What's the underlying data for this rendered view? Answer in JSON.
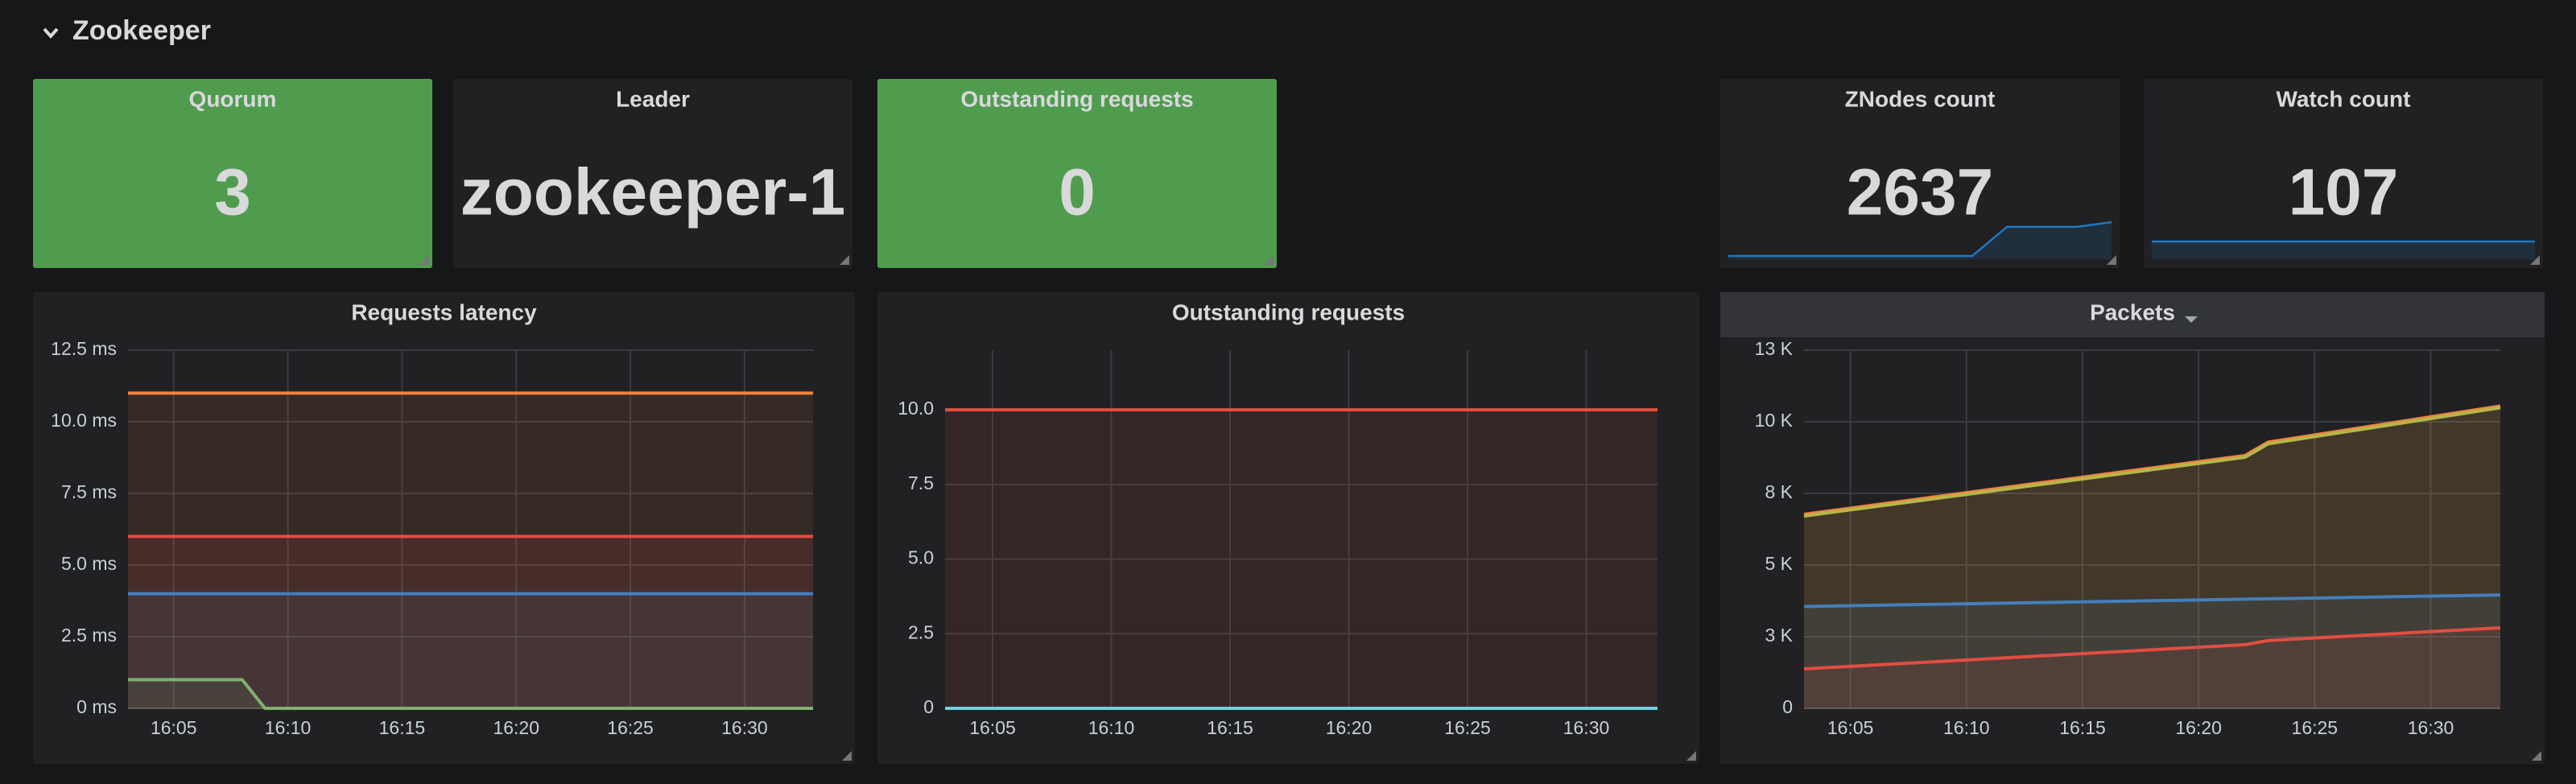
{
  "header": {
    "title": "Zookeeper"
  },
  "stats": [
    {
      "title": "Quorum",
      "value": 3,
      "color": "#4f9c4f"
    },
    {
      "title": "Leader",
      "value": "zookeeper-1",
      "color": "#212124"
    },
    {
      "title": "Outstanding requests",
      "value": 0,
      "color": "#4f9c4f"
    },
    {
      "title": "ZNodes count",
      "value": 2637,
      "color": "#212124",
      "sparkline": [
        2601,
        2601,
        2601,
        2601,
        2601,
        2601,
        2601,
        2601,
        2632,
        2632,
        2632,
        2637
      ],
      "sparkline_color": "#1f78c1"
    },
    {
      "title": "Watch count",
      "value": 107,
      "color": "#212124",
      "sparkline": [
        107,
        107,
        107,
        107,
        107,
        107,
        107,
        107,
        107,
        107,
        107,
        107
      ],
      "sparkline_color": "#1f78c1"
    }
  ],
  "chart_data": [
    {
      "type": "line",
      "title": "Requests latency",
      "fill": true,
      "grid": true,
      "categories": [
        null,
        null,
        "16:05",
        null,
        null,
        null,
        null,
        "16:10",
        null,
        null,
        null,
        null,
        "16:15",
        null,
        null,
        null,
        null,
        "16:20",
        null,
        null,
        null,
        null,
        "16:25",
        null,
        null,
        null,
        null,
        "16:30",
        null,
        null,
        null
      ],
      "ylim": [
        0,
        12.5
      ],
      "yticks": [
        {
          "value": 0,
          "label": "0 ms"
        },
        {
          "value": 2.5,
          "label": "2.5 ms"
        },
        {
          "value": 5,
          "label": "5.0 ms"
        },
        {
          "value": 7.5,
          "label": "7.5 ms"
        },
        {
          "value": 10,
          "label": "10.0 ms"
        },
        {
          "value": 12.5,
          "label": "12.5 ms"
        }
      ],
      "series": [
        {
          "color": "#ef843c",
          "values": [
            11,
            11,
            11,
            11,
            11,
            11,
            11,
            11,
            11,
            11,
            11,
            11,
            11,
            11,
            11,
            11,
            11,
            11,
            11,
            11,
            11,
            11,
            11,
            11,
            11,
            11,
            11,
            11,
            11,
            11,
            11
          ]
        },
        {
          "color": "#e24d42",
          "values": [
            6,
            6,
            6,
            6,
            6,
            6,
            6,
            6,
            6,
            6,
            6,
            6,
            6,
            6,
            6,
            6,
            6,
            6,
            6,
            6,
            6,
            6,
            6,
            6,
            6,
            6,
            6,
            6,
            6,
            6,
            6
          ]
        },
        {
          "color": "#447ebc",
          "values": [
            4,
            4,
            4,
            4,
            4,
            4,
            4,
            4,
            4,
            4,
            4,
            4,
            4,
            4,
            4,
            4,
            4,
            4,
            4,
            4,
            4,
            4,
            4,
            4,
            4,
            4,
            4,
            4,
            4,
            4,
            4
          ]
        },
        {
          "color": "#7eb26d",
          "values": [
            1,
            1,
            1,
            1,
            1,
            1,
            0,
            0,
            0,
            0,
            0,
            0,
            0,
            0,
            0,
            0,
            0,
            0,
            0,
            0,
            0,
            0,
            0,
            0,
            0,
            0,
            0,
            0,
            0,
            0,
            0
          ]
        }
      ]
    },
    {
      "type": "line",
      "title": "Outstanding requests",
      "fill": true,
      "grid": true,
      "categories": [
        null,
        null,
        "16:05",
        null,
        null,
        null,
        null,
        "16:10",
        null,
        null,
        null,
        null,
        "16:15",
        null,
        null,
        null,
        null,
        "16:20",
        null,
        null,
        null,
        null,
        "16:25",
        null,
        null,
        null,
        null,
        "16:30",
        null,
        null,
        null
      ],
      "ylim": [
        0,
        12
      ],
      "yticks": [
        0,
        2.5,
        {
          "value": 5,
          "label": "5.0"
        },
        7.5,
        {
          "value": 10,
          "label": "10.0"
        }
      ],
      "series": [
        {
          "color": "#e24d42",
          "values": [
            10,
            10,
            10,
            10,
            10,
            10,
            10,
            10,
            10,
            10,
            10,
            10,
            10,
            10,
            10,
            10,
            10,
            10,
            10,
            10,
            10,
            10,
            10,
            10,
            10,
            10,
            10,
            10,
            10,
            10,
            10
          ]
        },
        {
          "color": "#6ed0e0",
          "values": [
            0,
            0,
            0,
            0,
            0,
            0,
            0,
            0,
            0,
            0,
            0,
            0,
            0,
            0,
            0,
            0,
            0,
            0,
            0,
            0,
            0,
            0,
            0,
            0,
            0,
            0,
            0,
            0,
            0,
            0,
            0
          ]
        }
      ]
    },
    {
      "type": "line",
      "title": "Packets",
      "fill": true,
      "grid": true,
      "categories": [
        null,
        null,
        "16:05",
        null,
        null,
        null,
        null,
        "16:10",
        null,
        null,
        null,
        null,
        "16:15",
        null,
        null,
        null,
        null,
        "16:20",
        null,
        null,
        null,
        null,
        "16:25",
        null,
        null,
        null,
        null,
        "16:30",
        null,
        null,
        null
      ],
      "ylim": [
        0,
        12500
      ],
      "yticks": [
        0,
        {
          "value": 2500,
          "label": "3 K"
        },
        {
          "value": 5000,
          "label": "5 K"
        },
        {
          "value": 7500,
          "label": "8 K"
        },
        {
          "value": 10000,
          "label": "10 K"
        },
        {
          "value": 12500,
          "label": "13 K"
        }
      ],
      "series": [
        {
          "color": "#ef843c",
          "values": [
            6770,
            6878,
            6986,
            7094,
            7202,
            7310,
            7418,
            7526,
            7634,
            7742,
            7850,
            7958,
            8066,
            8174,
            8282,
            8390,
            8498,
            8606,
            8714,
            8822,
            9290,
            9416,
            9542,
            9668,
            9794,
            9920,
            10046,
            10172,
            10298,
            10424,
            10550
          ]
        },
        {
          "color": "#b5b64a",
          "values": [
            6710,
            6818,
            6926,
            7034,
            7142,
            7250,
            7358,
            7466,
            7574,
            7682,
            7790,
            7898,
            8006,
            8114,
            8222,
            8330,
            8438,
            8546,
            8654,
            8762,
            9230,
            9356,
            9482,
            9608,
            9734,
            9860,
            9986,
            10112,
            10238,
            10364,
            10490
          ]
        },
        {
          "color": "#447ebc",
          "values": [
            3555,
            3568,
            3582,
            3595,
            3609,
            3622,
            3635,
            3649,
            3662,
            3676,
            3689,
            3702,
            3716,
            3729,
            3743,
            3756,
            3769,
            3783,
            3796,
            3810,
            3823,
            3836,
            3850,
            3863,
            3877,
            3890,
            3903,
            3917,
            3930,
            3944,
            3957
          ]
        },
        {
          "color": "#e24d42",
          "values": [
            1376,
            1421,
            1465,
            1510,
            1554,
            1599,
            1643,
            1688,
            1732,
            1777,
            1821,
            1866,
            1910,
            1955,
            1999,
            2044,
            2088,
            2133,
            2177,
            2222,
            2366,
            2411,
            2455,
            2500,
            2544,
            2589,
            2633,
            2678,
            2722,
            2767,
            2810
          ]
        }
      ]
    }
  ]
}
